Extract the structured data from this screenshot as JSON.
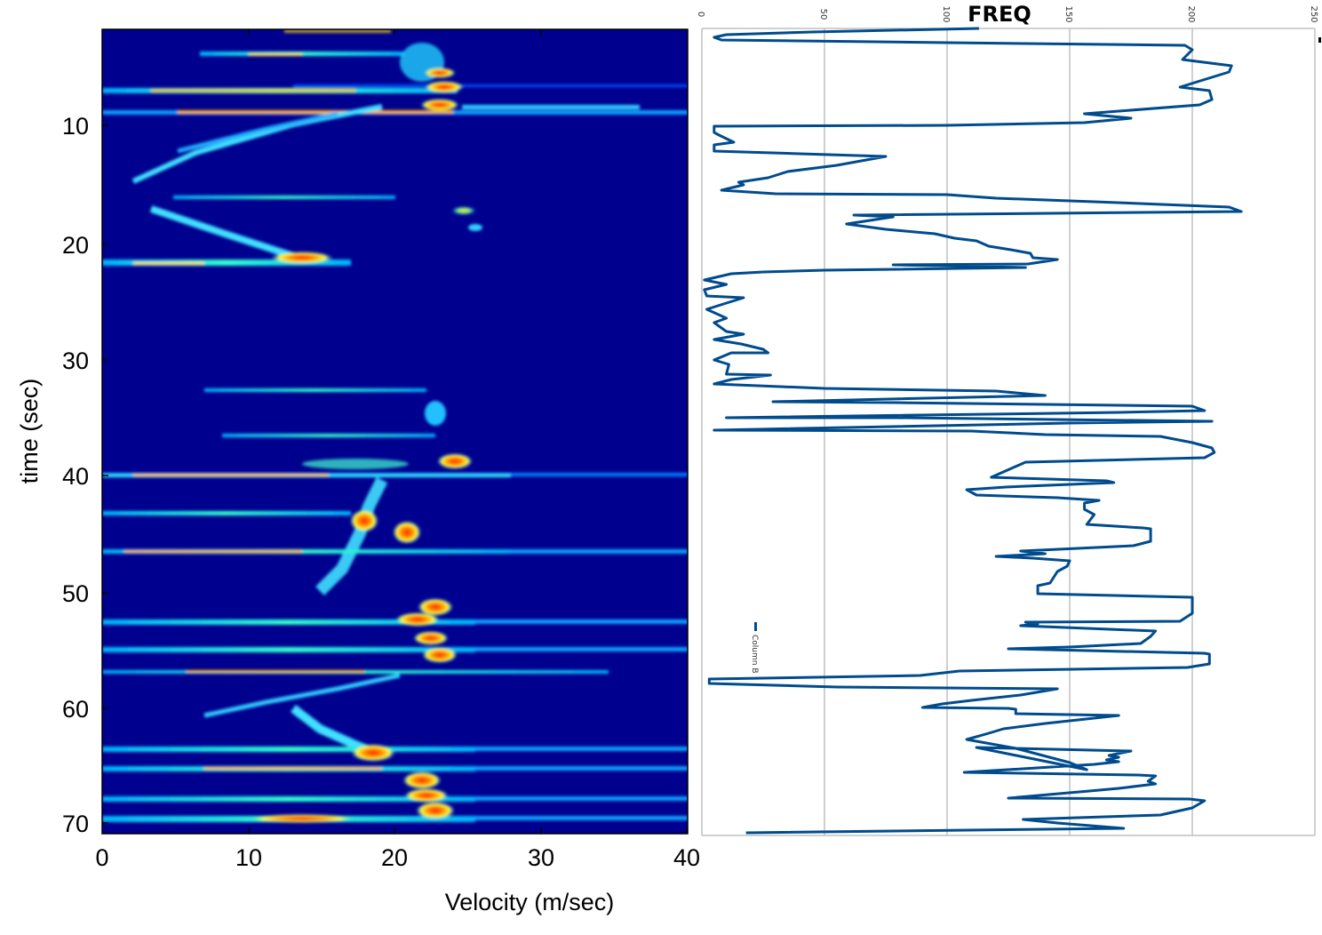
{
  "chart_data": [
    {
      "type": "heatmap",
      "title": "",
      "xlabel": "Velocity (m/sec)",
      "ylabel": "time (sec)",
      "xlim": [
        0,
        40.5
      ],
      "ylim": [
        71,
        2
      ],
      "xticks": [
        "0",
        "10",
        "20",
        "30",
        "40"
      ],
      "yticks": [
        "10",
        "20",
        "30",
        "40",
        "50",
        "60",
        "70"
      ],
      "colormap": "jet",
      "background_color": "#00008f",
      "features": [
        {
          "t": 2.0,
          "v_from": 14,
          "v_to": 24,
          "intensity": 0.6
        },
        {
          "t": 4.0,
          "v_from": 7,
          "v_to": 24,
          "intensity": 0.55
        },
        {
          "t": 5.5,
          "v_from": 21,
          "v_to": 26,
          "intensity": 0.9
        },
        {
          "t": 7.0,
          "v_from": 0,
          "v_to": 40,
          "intensity": 0.85
        },
        {
          "t": 8.8,
          "v_from": 0,
          "v_to": 40,
          "intensity": 0.95
        },
        {
          "t": 16.0,
          "v_from": 5,
          "v_to": 22,
          "intensity": 0.45
        },
        {
          "t": 17.2,
          "v_from": 24,
          "v_to": 26,
          "intensity": 0.6
        },
        {
          "t": 21.3,
          "v_from": 0,
          "v_to": 30,
          "intensity": 0.9
        },
        {
          "t": 32.5,
          "v_from": 5,
          "v_to": 24,
          "intensity": 0.45
        },
        {
          "t": 36.0,
          "v_from": 5,
          "v_to": 24,
          "intensity": 0.5
        },
        {
          "t": 39.0,
          "v_from": 8,
          "v_to": 28,
          "intensity": 0.85
        },
        {
          "t": 40.0,
          "v_from": 0,
          "v_to": 40,
          "intensity": 0.9
        },
        {
          "t": 43.0,
          "v_from": 4,
          "v_to": 22,
          "intensity": 0.7
        },
        {
          "t": 44.2,
          "v_from": 17,
          "v_to": 20,
          "intensity": 0.95
        },
        {
          "t": 45.0,
          "v_from": 20,
          "v_to": 23,
          "intensity": 0.95
        },
        {
          "t": 46.5,
          "v_from": 0,
          "v_to": 40,
          "intensity": 0.9
        },
        {
          "t": 51.0,
          "v_from": 21,
          "v_to": 24,
          "intensity": 0.9
        },
        {
          "t": 52.5,
          "v_from": 0,
          "v_to": 40,
          "intensity": 0.9
        },
        {
          "t": 54.8,
          "v_from": 0,
          "v_to": 40,
          "intensity": 0.9
        },
        {
          "t": 56.7,
          "v_from": 0,
          "v_to": 36,
          "intensity": 0.8
        },
        {
          "t": 63.0,
          "v_from": 1,
          "v_to": 40,
          "intensity": 0.8
        },
        {
          "t": 65.5,
          "v_from": 0,
          "v_to": 40,
          "intensity": 0.85
        },
        {
          "t": 67.8,
          "v_from": 0,
          "v_to": 40,
          "intensity": 0.85
        },
        {
          "t": 69.8,
          "v_from": 0,
          "v_to": 40,
          "intensity": 0.95
        }
      ]
    },
    {
      "type": "line",
      "title": "FREQ",
      "orientation": "vertical (value on horizontal axis, sequence downward)",
      "xlabel": "",
      "ylabel": "",
      "xlim": [
        0,
        250
      ],
      "xticks": [
        "0",
        "50",
        "100",
        "150",
        "200",
        "250"
      ],
      "grid": true,
      "legend": {
        "position": "left, rotated",
        "entries": [
          "Column B"
        ]
      },
      "series_color": "#004b8d",
      "series": [
        {
          "name": "Column B",
          "points": [
            [
              113,
              32
            ],
            [
              45,
              36
            ],
            [
              10,
              39
            ],
            [
              5,
              42
            ],
            [
              8,
              45
            ],
            [
              100,
              48
            ],
            [
              197,
              51
            ],
            [
              200,
              56
            ],
            [
              196,
              67
            ],
            [
              216,
              74
            ],
            [
              215,
              81
            ],
            [
              195,
              98
            ],
            [
              207,
              102
            ],
            [
              208,
              112
            ],
            [
              203,
              118
            ],
            [
              156,
              128
            ],
            [
              175,
              133
            ],
            [
              156,
              138
            ],
            [
              100,
              141
            ],
            [
              5,
              142
            ],
            [
              5,
              149
            ],
            [
              7,
              152
            ],
            [
              13,
              160
            ],
            [
              5,
              163
            ],
            [
              5,
              170
            ],
            [
              40,
              173
            ],
            [
              75,
              176
            ],
            [
              55,
              186
            ],
            [
              35,
              193
            ],
            [
              27,
              200
            ],
            [
              15,
              205
            ],
            [
              17,
              208
            ],
            [
              8,
              214
            ],
            [
              30,
              218
            ],
            [
              100,
              219
            ],
            [
              120,
              223
            ],
            [
              160,
              227
            ],
            [
              215,
              233
            ],
            [
              220,
              238
            ],
            [
              62,
              242
            ],
            [
              78,
              244
            ],
            [
              59,
              252
            ],
            [
              75,
              258
            ],
            [
              95,
              263
            ],
            [
              103,
              268
            ],
            [
              112,
              271
            ],
            [
              117,
              277
            ],
            [
              126,
              281
            ],
            [
              134,
              285
            ],
            [
              135,
              290
            ],
            [
              145,
              292
            ],
            [
              133,
              297
            ],
            [
              78,
              298
            ],
            [
              113,
              300
            ],
            [
              132,
              301
            ],
            [
              50,
              304
            ],
            [
              25,
              306
            ],
            [
              12,
              308
            ],
            [
              1,
              315
            ],
            [
              10,
              320
            ],
            [
              1,
              326
            ],
            [
              2,
              333
            ],
            [
              17,
              335
            ],
            [
              10,
              341
            ],
            [
              2,
              348
            ],
            [
              10,
              358
            ],
            [
              5,
              363
            ],
            [
              10,
              373
            ],
            [
              17,
              376
            ],
            [
              5,
              382
            ],
            [
              16,
              387
            ],
            [
              25,
              393
            ],
            [
              27,
              397
            ],
            [
              12,
              397
            ],
            [
              5,
              405
            ],
            [
              11,
              410
            ],
            [
              10,
              421
            ],
            [
              28,
              422
            ],
            [
              12,
              427
            ],
            [
              5,
              432
            ],
            [
              50,
              437
            ],
            [
              120,
              440
            ],
            [
              140,
              445
            ],
            [
              29,
              452
            ],
            [
              80,
              453
            ],
            [
              140,
              455
            ],
            [
              200,
              457
            ],
            [
              205,
              462
            ],
            [
              170,
              464
            ],
            [
              10,
              470
            ],
            [
              80,
              470
            ],
            [
              208,
              474
            ],
            [
              150,
              476
            ],
            [
              5,
              484
            ],
            [
              110,
              485
            ],
            [
              140,
              489
            ],
            [
              187,
              491
            ],
            [
              200,
              498
            ],
            [
              208,
              504
            ],
            [
              209,
              509
            ],
            [
              205,
              515
            ],
            [
              132,
              520
            ],
            [
              118,
              537
            ],
            [
              165,
              541
            ],
            [
              168,
              543
            ],
            [
              124,
              548
            ],
            [
              108,
              551
            ],
            [
              112,
              557
            ],
            [
              145,
              560
            ],
            [
              162,
              563
            ],
            [
              156,
              566
            ],
            [
              156,
              573
            ],
            [
              160,
              579
            ],
            [
              157,
              590
            ],
            [
              180,
              594
            ],
            [
              183,
              595
            ],
            [
              183,
              609
            ],
            [
              176,
              614
            ],
            [
              130,
              620
            ],
            [
              140,
              623
            ],
            [
              120,
              626
            ],
            [
              135,
              628
            ],
            [
              150,
              631
            ],
            [
              149,
              637
            ],
            [
              147,
              640
            ],
            [
              145,
              643
            ],
            [
              142,
              656
            ],
            [
              137,
              659
            ],
            [
              137,
              668
            ],
            [
              200,
              672
            ],
            [
              200,
              675
            ],
            [
              200,
              690
            ],
            [
              195,
              699
            ],
            [
              132,
              700
            ],
            [
              137,
              702
            ],
            [
              130,
              704
            ],
            [
              185,
              710
            ],
            [
              183,
              716
            ],
            [
              179,
              724
            ],
            [
              150,
              728
            ],
            [
              125,
              730
            ],
            [
              205,
              735
            ],
            [
              207,
              736
            ],
            [
              207,
              747
            ],
            [
              198,
              751
            ],
            [
              105,
              755
            ],
            [
              89,
              760
            ],
            [
              3,
              764
            ],
            [
              3,
              769
            ],
            [
              55,
              773
            ],
            [
              145,
              775
            ],
            [
              130,
              782
            ],
            [
              110,
              788
            ],
            [
              98,
              792
            ],
            [
              90,
              796
            ],
            [
              125,
              797
            ],
            [
              128,
              798
            ],
            [
              128,
              803
            ],
            [
              170,
              805
            ],
            [
              140,
              814
            ],
            [
              123,
              820
            ],
            [
              117,
              825
            ],
            [
              108,
              832
            ],
            [
              128,
              842
            ],
            [
              150,
              858
            ],
            [
              157,
              866
            ],
            [
              112,
              841
            ],
            [
              175,
              845
            ],
            [
              166,
              850
            ],
            [
              170,
              852
            ],
            [
              165,
              855
            ],
            [
              170,
              857
            ],
            [
              160,
              860
            ],
            [
              107,
              869
            ],
            [
              178,
              872
            ],
            [
              185,
              873
            ],
            [
              182,
              879
            ],
            [
              185,
              882
            ],
            [
              170,
              887
            ],
            [
              158,
              890
            ],
            [
              125,
              898
            ],
            [
              199,
              899
            ],
            [
              205,
              901
            ],
            [
              200,
              909
            ],
            [
              187,
              917
            ],
            [
              131,
              922
            ],
            [
              145,
              926
            ],
            [
              172,
              932
            ],
            [
              18,
              937
            ]
          ]
        }
      ]
    }
  ],
  "left_chart": {
    "xlabel": "Velocity (m/sec)",
    "ylabel": "time (sec)",
    "xticks": [
      "0",
      "10",
      "20",
      "30",
      "40"
    ],
    "yticks": [
      "10",
      "20",
      "30",
      "40",
      "50",
      "60",
      "70"
    ]
  },
  "right_chart": {
    "title": "FREQ",
    "xticks": [
      "0",
      "50",
      "100",
      "150",
      "200",
      "250"
    ],
    "legend_label": "Column B",
    "line_color": "#004b8d",
    "grid_color": "#c0c0c0"
  }
}
